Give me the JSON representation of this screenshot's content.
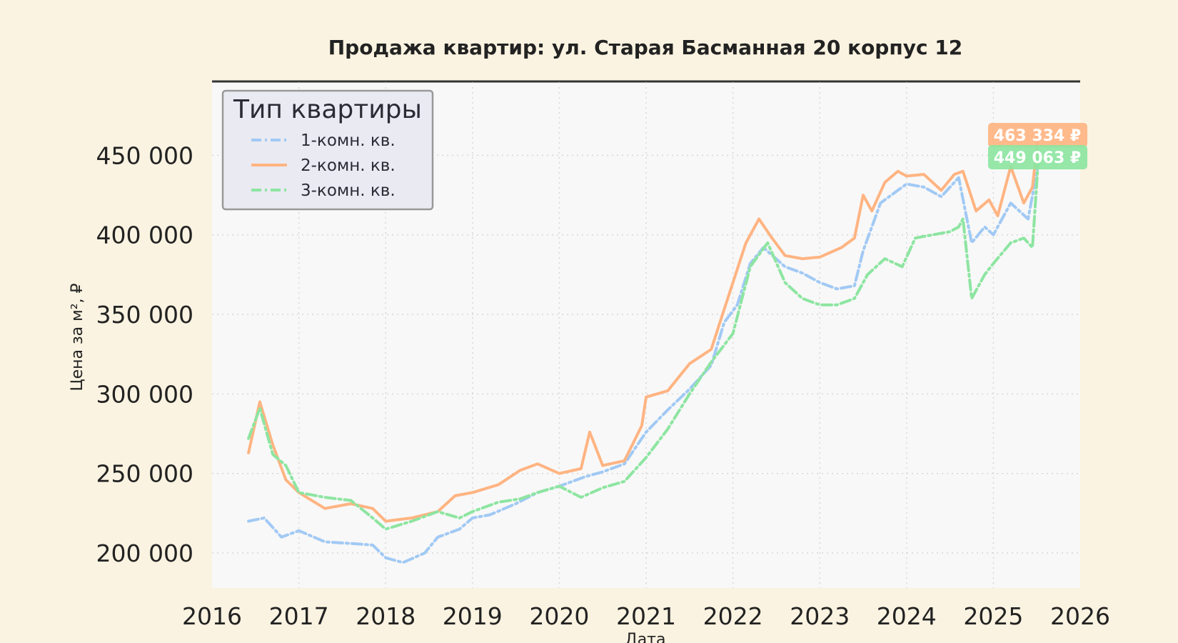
{
  "chart_data": {
    "type": "line",
    "title": "Продажа квартир: ул. Старая Басманная 20 корпус 12",
    "xlabel": "Дата",
    "ylabel": "Цена за м², ₽",
    "xlim": [
      2016,
      2026
    ],
    "ylim": [
      178000,
      496000
    ],
    "x_ticks": [
      "2016",
      "2017",
      "2018",
      "2019",
      "2020",
      "2021",
      "2022",
      "2023",
      "2024",
      "2025",
      "2026"
    ],
    "y_ticks": [
      {
        "value": 200000,
        "label": "200 000"
      },
      {
        "value": 250000,
        "label": "250 000"
      },
      {
        "value": 300000,
        "label": "300 000"
      },
      {
        "value": 350000,
        "label": "350 000"
      },
      {
        "value": 400000,
        "label": "400 000"
      },
      {
        "value": 450000,
        "label": "450 000"
      }
    ],
    "grid": true,
    "legend": {
      "title": "Тип квартиры",
      "position": "top-left"
    },
    "series": [
      {
        "name": "1-комн. кв.",
        "color": "#a1c9f4",
        "style": "dashdot",
        "x": [
          2016.42,
          2016.6,
          2016.8,
          2017.0,
          2017.3,
          2017.6,
          2017.85,
          2018.0,
          2018.2,
          2018.45,
          2018.6,
          2018.85,
          2019.0,
          2019.2,
          2019.5,
          2019.75,
          2020.0,
          2020.3,
          2020.5,
          2020.75,
          2021.0,
          2021.25,
          2021.5,
          2021.75,
          2021.9,
          2022.05,
          2022.2,
          2022.35,
          2022.6,
          2022.8,
          2023.0,
          2023.2,
          2023.4,
          2023.5,
          2023.7,
          2023.9,
          2024.0,
          2024.2,
          2024.4,
          2024.6,
          2024.75,
          2024.9,
          2025.0,
          2025.2,
          2025.4,
          2025.52
        ],
        "values": [
          220000,
          222000,
          210000,
          214000,
          207000,
          206000,
          205000,
          197000,
          194000,
          200000,
          210000,
          215000,
          222000,
          224000,
          231000,
          238000,
          242000,
          248000,
          251000,
          256000,
          276000,
          290000,
          303000,
          318000,
          345000,
          356000,
          382000,
          392000,
          380000,
          376000,
          370000,
          366000,
          368000,
          390000,
          420000,
          428000,
          432000,
          430000,
          424000,
          436000,
          395000,
          405000,
          400000,
          420000,
          410000,
          445000
        ]
      },
      {
        "name": "2-комн. кв.",
        "color": "#ffb482",
        "style": "solid",
        "x": [
          2016.42,
          2016.55,
          2016.7,
          2016.85,
          2017.0,
          2017.3,
          2017.6,
          2017.85,
          2018.0,
          2018.3,
          2018.6,
          2018.8,
          2019.0,
          2019.3,
          2019.55,
          2019.75,
          2020.0,
          2020.25,
          2020.35,
          2020.5,
          2020.75,
          2020.95,
          2021.0,
          2021.25,
          2021.5,
          2021.75,
          2021.85,
          2022.0,
          2022.15,
          2022.3,
          2022.45,
          2022.6,
          2022.8,
          2023.0,
          2023.25,
          2023.4,
          2023.5,
          2023.6,
          2023.75,
          2023.9,
          2024.0,
          2024.2,
          2024.4,
          2024.55,
          2024.65,
          2024.8,
          2024.95,
          2025.05,
          2025.2,
          2025.35,
          2025.45,
          2025.52
        ],
        "values": [
          263000,
          295000,
          268000,
          246000,
          238000,
          228000,
          231000,
          228000,
          220000,
          222000,
          226000,
          236000,
          238000,
          243000,
          252000,
          256000,
          250000,
          253000,
          276000,
          255000,
          258000,
          280000,
          298000,
          302000,
          319000,
          328000,
          345000,
          370000,
          395000,
          410000,
          398000,
          387000,
          385000,
          386000,
          392000,
          398000,
          425000,
          415000,
          433000,
          440000,
          437000,
          438000,
          428000,
          438000,
          440000,
          415000,
          422000,
          412000,
          443000,
          420000,
          430000,
          463334
        ]
      },
      {
        "name": "3-комн. кв.",
        "color": "#8de5a1",
        "style": "dashdot",
        "x": [
          2016.42,
          2016.55,
          2016.7,
          2016.85,
          2017.0,
          2017.3,
          2017.6,
          2017.85,
          2018.0,
          2018.3,
          2018.6,
          2018.85,
          2019.0,
          2019.3,
          2019.55,
          2019.75,
          2020.0,
          2020.25,
          2020.5,
          2020.75,
          2021.0,
          2021.25,
          2021.5,
          2021.75,
          2022.0,
          2022.2,
          2022.4,
          2022.6,
          2022.8,
          2023.0,
          2023.2,
          2023.4,
          2023.55,
          2023.75,
          2023.95,
          2024.1,
          2024.3,
          2024.5,
          2024.6,
          2024.65,
          2024.75,
          2024.9,
          2025.0,
          2025.2,
          2025.35,
          2025.45,
          2025.52
        ],
        "values": [
          272000,
          291000,
          262000,
          255000,
          238000,
          235000,
          233000,
          222000,
          215000,
          220000,
          226000,
          222000,
          226000,
          232000,
          234000,
          238000,
          242000,
          235000,
          241000,
          245000,
          260000,
          278000,
          300000,
          320000,
          338000,
          380000,
          395000,
          370000,
          360000,
          356000,
          356000,
          360000,
          375000,
          385000,
          380000,
          398000,
          400000,
          402000,
          405000,
          410000,
          360000,
          375000,
          382000,
          395000,
          398000,
          392000,
          449063
        ]
      }
    ],
    "end_labels": [
      {
        "series": "2-комн. кв.",
        "text": "463 334 ₽",
        "color": "#ffb482",
        "value": 463334
      },
      {
        "series": "3-комн. кв.",
        "text": "449 063 ₽",
        "color": "#8de5a1",
        "value": 449063
      }
    ]
  }
}
